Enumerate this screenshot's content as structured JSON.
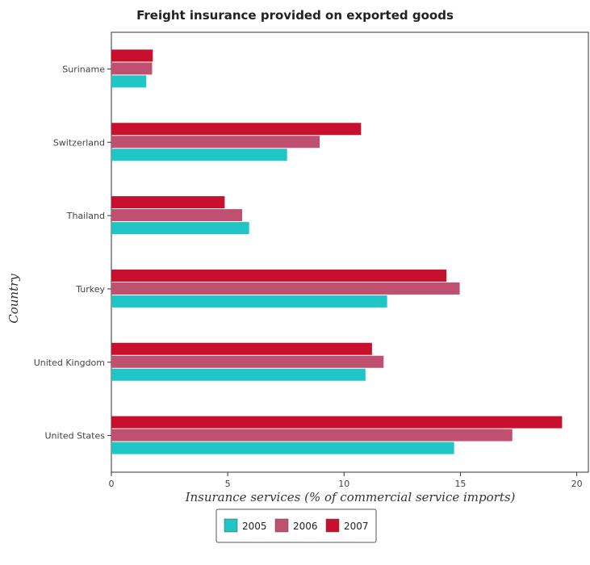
{
  "chart_data": {
    "type": "bar",
    "orientation": "horizontal",
    "title": "Freight insurance provided on exported goods",
    "xlabel": "Insurance services (% of commercial service imports)",
    "ylabel": "Country",
    "xlim": [
      0,
      20.5
    ],
    "xticks": [
      0,
      5,
      10,
      15,
      20
    ],
    "categories": [
      "Suriname",
      "Switzerland",
      "Thailand",
      "Turkey",
      "United Kingdom",
      "United States"
    ],
    "series": [
      {
        "name": "2005",
        "color": "#20c5c5",
        "values": [
          1.5,
          7.55,
          5.92,
          11.85,
          10.92,
          14.73
        ]
      },
      {
        "name": "2006",
        "color": "#c05070",
        "values": [
          1.75,
          8.95,
          5.62,
          14.97,
          11.7,
          17.23
        ]
      },
      {
        "name": "2007",
        "color": "#c8102e",
        "values": [
          1.78,
          10.73,
          4.87,
          14.4,
          11.2,
          19.37
        ]
      }
    ],
    "grid": false,
    "legend_position": "bottom-center"
  }
}
